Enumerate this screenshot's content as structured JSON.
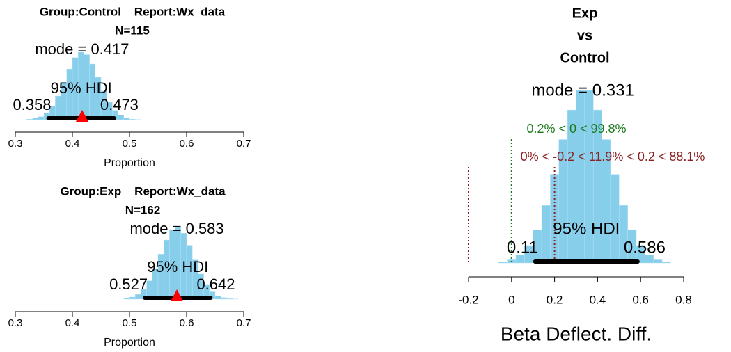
{
  "chart_data": [
    {
      "type": "histogram",
      "title": [
        "Group:Control    Report:Wx_data",
        "N=115"
      ],
      "bins": [
        0.32,
        0.33,
        0.34,
        0.35,
        0.36,
        0.37,
        0.38,
        0.39,
        0.4,
        0.41,
        0.42,
        0.43,
        0.44,
        0.45,
        0.46,
        0.47,
        0.48,
        0.49,
        0.5,
        0.51,
        0.52
      ],
      "counts": [
        0.1,
        0.3,
        0.6,
        1.4,
        2.8,
        4.8,
        7.5,
        10.3,
        12.6,
        13.7,
        13.2,
        11.3,
        8.6,
        5.8,
        3.5,
        1.9,
        0.9,
        0.4,
        0.1,
        0.04
      ],
      "color": "#87ceeb",
      "xlim": [
        0.3,
        0.7
      ],
      "xticks": [
        0.3,
        0.4,
        0.5,
        0.6,
        0.7
      ],
      "xlabel": "Proportion",
      "mode": {
        "value": 0.417,
        "label": "mode = 0.417"
      },
      "hdi_label": "95% HDI",
      "hdi": [
        0.358,
        0.473
      ],
      "mode_marker": true
    },
    {
      "type": "histogram",
      "title": [
        "Group:Exp    Report:Wx_data",
        "N=162"
      ],
      "bins": [
        0.49,
        0.5,
        0.51,
        0.52,
        0.53,
        0.54,
        0.55,
        0.56,
        0.57,
        0.58,
        0.59,
        0.6,
        0.61,
        0.62,
        0.63,
        0.64,
        0.65,
        0.66,
        0.67,
        0.68,
        0.69
      ],
      "counts": [
        0.14,
        0.4,
        0.9,
        1.9,
        3.5,
        5.8,
        8.6,
        11.3,
        13.2,
        13.7,
        12.6,
        10.3,
        7.5,
        4.8,
        2.8,
        1.4,
        0.6,
        0.3,
        0.1,
        0.03
      ],
      "color": "#87ceeb",
      "xlim": [
        0.3,
        0.7
      ],
      "xticks": [
        0.3,
        0.4,
        0.5,
        0.6,
        0.7
      ],
      "xlabel": "Proportion",
      "mode": {
        "value": 0.583,
        "label": "mode = 0.583"
      },
      "hdi_label": "95% HDI",
      "hdi": [
        0.527,
        0.642
      ],
      "mode_marker": true
    },
    {
      "type": "histogram",
      "title": [
        "Exp",
        "vs",
        "Control"
      ],
      "bins": [
        -0.06,
        -0.02,
        0.02,
        0.06,
        0.1,
        0.14,
        0.18,
        0.22,
        0.26,
        0.3,
        0.34,
        0.38,
        0.42,
        0.46,
        0.5,
        0.54,
        0.58,
        0.62,
        0.66,
        0.7,
        0.74
      ],
      "counts": [
        0.02,
        0.06,
        0.15,
        0.33,
        0.63,
        1.09,
        1.68,
        2.34,
        2.9,
        3.27,
        3.27,
        2.9,
        2.34,
        1.68,
        1.09,
        0.63,
        0.33,
        0.15,
        0.06,
        0.02
      ],
      "color": "#87ceeb",
      "xlim": [
        -0.2,
        0.8
      ],
      "xticks": [
        -0.2,
        0,
        0.2,
        0.4,
        0.6,
        0.8
      ],
      "xlabel": "Beta Deflect. Diff.",
      "mode": {
        "value": 0.331,
        "label": "mode = 0.331"
      },
      "hdi_label": "95% HDI",
      "hdi": [
        0.11,
        0.586
      ],
      "mode_marker": false,
      "comparison": {
        "value": 0,
        "text": "0.2% < 0 < 99.8%",
        "color": "#1a7a1a"
      },
      "rope": {
        "values": [
          -0.2,
          0.2
        ],
        "text": "0% < -0.2 < 11.9% < 0.2 < 88.1%",
        "color": "#8b2323"
      }
    }
  ]
}
